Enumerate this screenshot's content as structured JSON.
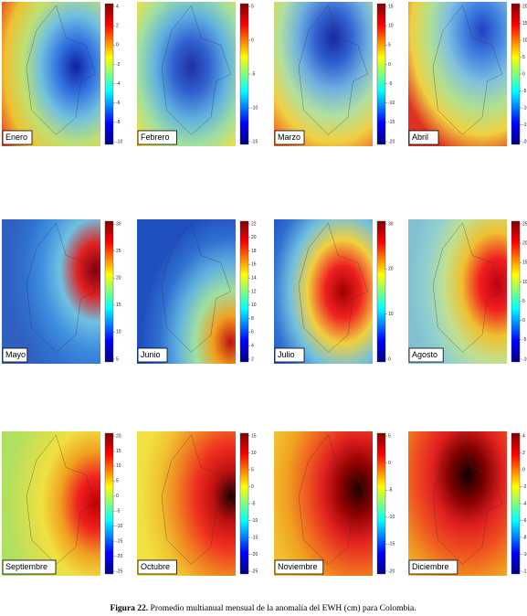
{
  "figure": {
    "panels": [
      {
        "label": "Enero",
        "colorbar_ticks": [
          4,
          2,
          0,
          -2,
          -4,
          -6,
          -8,
          -10
        ]
      },
      {
        "label": "Febrero",
        "colorbar_ticks": [
          5,
          0,
          -5,
          -10,
          -15
        ]
      },
      {
        "label": "Marzo",
        "colorbar_ticks": [
          15,
          10,
          5,
          0,
          -5,
          -10,
          -15,
          -20
        ]
      },
      {
        "label": "Abril",
        "colorbar_ticks": [
          20,
          15,
          10,
          5,
          0,
          -5,
          -10,
          -15,
          -20
        ]
      },
      {
        "label": "Mayo",
        "colorbar_ticks": [
          30,
          25,
          20,
          15,
          10,
          5
        ]
      },
      {
        "label": "Junio",
        "colorbar_ticks": [
          22,
          20,
          18,
          16,
          14,
          12,
          10,
          8,
          6,
          4,
          2
        ]
      },
      {
        "label": "Julio",
        "colorbar_ticks": [
          30,
          20,
          10,
          0
        ]
      },
      {
        "label": "Agosto",
        "colorbar_ticks": [
          25,
          20,
          15,
          10,
          5,
          0,
          -5,
          -10
        ]
      },
      {
        "label": "Septiembre",
        "colorbar_ticks": [
          20,
          15,
          10,
          5,
          0,
          -5,
          -10,
          -15,
          -20,
          -25
        ]
      },
      {
        "label": "Octubre",
        "colorbar_ticks": [
          15,
          10,
          5,
          0,
          -5,
          -10,
          -15,
          -20,
          -25
        ]
      },
      {
        "label": "Noviembre",
        "colorbar_ticks": [
          5,
          0,
          -5,
          -10,
          -15,
          -20
        ]
      },
      {
        "label": "Diciembre",
        "colorbar_ticks": [
          4,
          2,
          0,
          -2,
          -4,
          -6,
          -8,
          -10,
          -12
        ]
      }
    ],
    "caption_bold": "Figura 22.",
    "caption": " Promedio multianual mensual de la anomalía del EWH (cm) para Colombia."
  }
}
